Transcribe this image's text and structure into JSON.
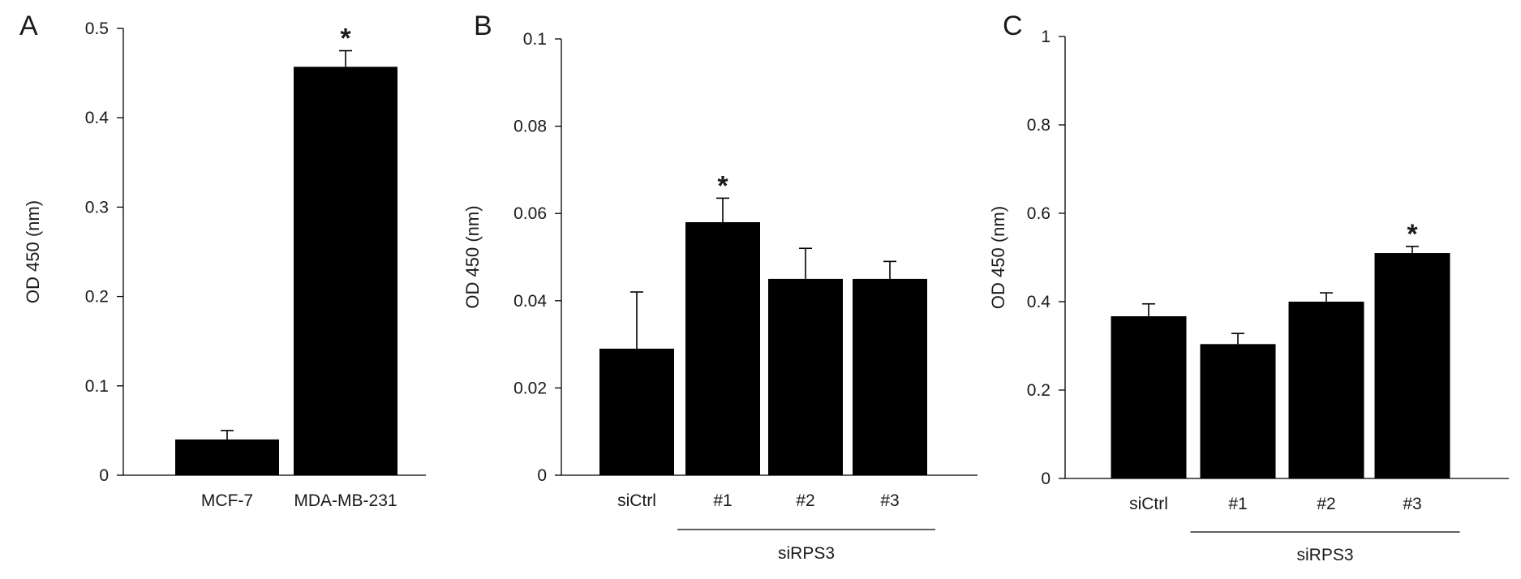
{
  "chart_data": [
    {
      "panel": "A",
      "type": "bar",
      "ylabel": "OD 450  (nm)",
      "ylim": [
        0,
        0.5
      ],
      "yticks": [
        0,
        0.1,
        0.2,
        0.3,
        0.4,
        0.5
      ],
      "ytick_labels": [
        "0",
        "0.1",
        "0.2",
        "0.3",
        "0.4",
        "0.5"
      ],
      "categories": [
        "MCF-7",
        "MDA-MB-231"
      ],
      "values": [
        0.04,
        0.457
      ],
      "errors": [
        0.01,
        0.018
      ],
      "significance": [
        "",
        "*"
      ],
      "group": null
    },
    {
      "panel": "B",
      "type": "bar",
      "ylabel": "OD 450  (nm)",
      "ylim": [
        0,
        0.1
      ],
      "yticks": [
        0,
        0.02,
        0.04,
        0.06,
        0.08,
        0.1
      ],
      "ytick_labels": [
        "0",
        "0.02",
        "0.04",
        "0.06",
        "0.08",
        "0.1"
      ],
      "categories": [
        "siCtrl",
        "#1",
        "#2",
        "#3"
      ],
      "values": [
        0.029,
        0.058,
        0.045,
        0.045
      ],
      "errors": [
        0.013,
        0.0055,
        0.007,
        0.004
      ],
      "significance": [
        "",
        "*",
        "",
        ""
      ],
      "group": {
        "label": "siRPS3",
        "from": 1,
        "to": 3
      }
    },
    {
      "panel": "C",
      "type": "bar",
      "ylabel": "OD 450  (nm)",
      "ylim": [
        0,
        1
      ],
      "yticks": [
        0,
        0.2,
        0.4,
        0.6,
        0.8,
        1
      ],
      "ytick_labels": [
        "0",
        "0.2",
        "0.4",
        "0.6",
        "0.8",
        "1"
      ],
      "categories": [
        "siCtrl",
        "#1",
        "#2",
        "#3"
      ],
      "values": [
        0.367,
        0.304,
        0.4,
        0.51
      ],
      "errors": [
        0.028,
        0.024,
        0.02,
        0.015
      ],
      "significance": [
        "",
        "",
        "",
        "*"
      ],
      "group": {
        "label": "siRPS3",
        "from": 1,
        "to": 3
      }
    }
  ]
}
